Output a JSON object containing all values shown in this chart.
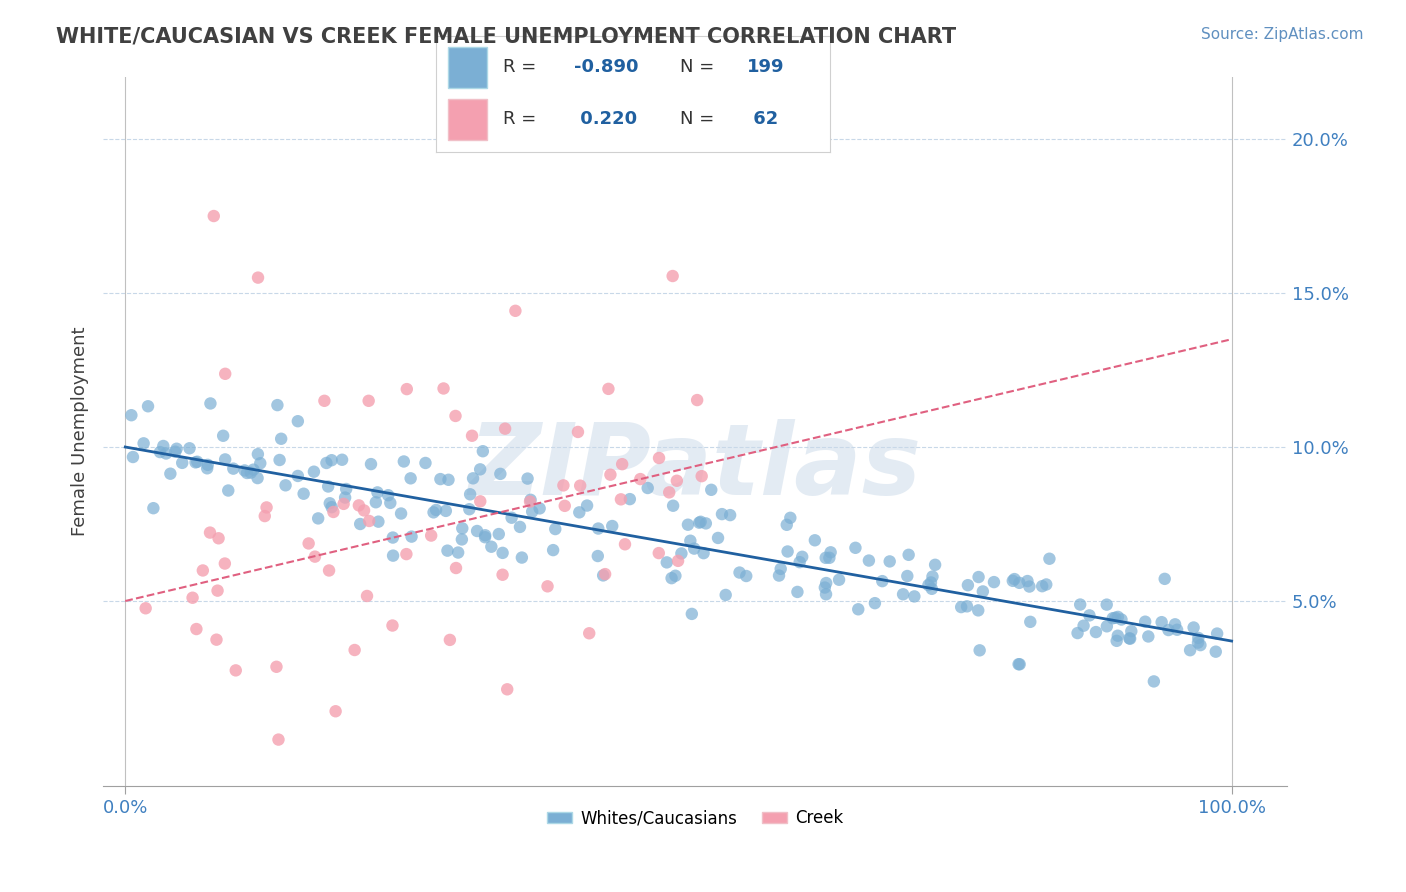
{
  "title": "WHITE/CAUCASIAN VS CREEK FEMALE UNEMPLOYMENT CORRELATION CHART",
  "source_text": "Source: ZipAtlas.com",
  "xlabel": "",
  "ylabel": "Female Unemployment",
  "right_yticks": [
    0.0,
    0.05,
    0.1,
    0.15,
    0.2
  ],
  "right_yticklabels": [
    "",
    "5.0%",
    "10.0%",
    "15.0%",
    "20.0%"
  ],
  "xticks": [
    0.0,
    1.0
  ],
  "xticklabels": [
    "0.0%",
    "100.0%"
  ],
  "xlim": [
    -0.02,
    1.05
  ],
  "ylim": [
    -0.01,
    0.22
  ],
  "blue_R": -0.89,
  "blue_N": 199,
  "pink_R": 0.22,
  "pink_N": 62,
  "blue_color": "#7BAFD4",
  "pink_color": "#F4A0B0",
  "blue_line_color": "#2060A0",
  "pink_line_color": "#E06080",
  "grid_color": "#C8D8E8",
  "background_color": "#FFFFFF",
  "watermark_text": "ZIPatlas",
  "watermark_color": "#C8D8E8",
  "title_color": "#404040",
  "source_color": "#6090C0",
  "legend_R_color": "#2060A0",
  "legend_N_color": "#2060A0",
  "blue_trend_x0": 0.0,
  "blue_trend_y0": 0.1,
  "blue_trend_x1": 1.0,
  "blue_trend_y1": 0.037,
  "pink_trend_x0": 0.0,
  "pink_trend_y0": 0.05,
  "pink_trend_x1": 1.0,
  "pink_trend_y1": 0.135,
  "seed": 42
}
